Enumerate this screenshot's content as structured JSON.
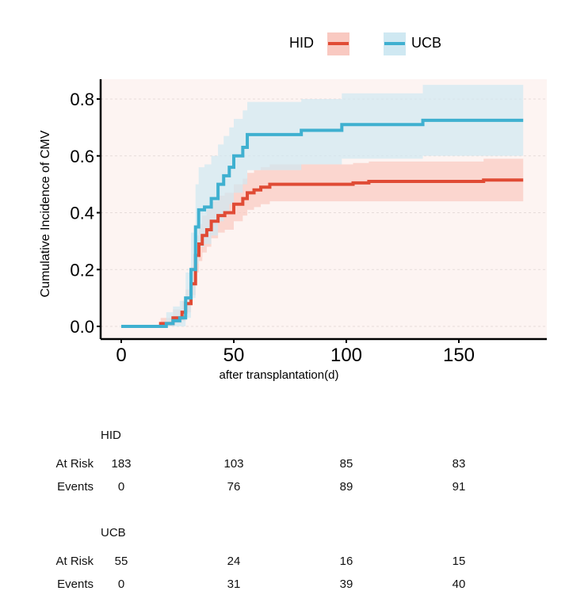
{
  "chart_data": {
    "type": "line",
    "step": true,
    "title": "",
    "xlabel": "after transplantation(d)",
    "ylabel": "Cumulative Incidence of CMV",
    "xlim": [
      -5,
      188
    ],
    "ylim": [
      -0.04,
      0.88
    ],
    "xticks": [
      0,
      50,
      100,
      150
    ],
    "yticks": [
      0.0,
      0.2,
      0.4,
      0.6,
      0.8
    ],
    "ytick_labels": [
      "0.0",
      "0.2",
      "0.4",
      "0.6",
      "0.8"
    ],
    "grid": "horizontal dashed",
    "legend_position": "top",
    "panel_color": "#fdf4f2",
    "series": [
      {
        "name": "HID",
        "color": "#e04b35",
        "band_color": "#f9c9c1",
        "x": [
          0,
          17.5,
          23,
          27,
          28.6,
          31,
          33,
          34.5,
          36,
          38,
          40,
          43,
          46,
          50,
          54,
          56,
          59,
          62,
          66,
          70,
          103,
          110,
          161,
          178.6
        ],
        "y": [
          0,
          0.01,
          0.03,
          0.05,
          0.08,
          0.15,
          0.25,
          0.29,
          0.32,
          0.34,
          0.37,
          0.39,
          0.4,
          0.43,
          0.45,
          0.47,
          0.48,
          0.49,
          0.5,
          0.5,
          0.505,
          0.51,
          0.515,
          0.515
        ],
        "lower": [
          0,
          0,
          0.01,
          0.02,
          0.05,
          0.11,
          0.19,
          0.23,
          0.26,
          0.28,
          0.31,
          0.33,
          0.34,
          0.37,
          0.39,
          0.41,
          0.42,
          0.43,
          0.44,
          0.44,
          0.44,
          0.44,
          0.44,
          0.44
        ],
        "upper": [
          0,
          0.03,
          0.06,
          0.09,
          0.13,
          0.21,
          0.32,
          0.36,
          0.39,
          0.41,
          0.44,
          0.46,
          0.47,
          0.5,
          0.52,
          0.54,
          0.55,
          0.56,
          0.57,
          0.57,
          0.575,
          0.58,
          0.59,
          0.59
        ]
      },
      {
        "name": "UCB",
        "color": "#3fb0d0",
        "band_color": "#cfe8f2",
        "x": [
          0,
          20,
          23,
          26,
          28.6,
          31,
          33,
          34.4,
          37,
          40,
          43,
          45.5,
          48,
          50,
          54,
          56,
          80,
          98,
          134,
          178.6
        ],
        "y": [
          0,
          0.01,
          0.02,
          0.03,
          0.1,
          0.2,
          0.35,
          0.41,
          0.42,
          0.45,
          0.5,
          0.53,
          0.56,
          0.6,
          0.63,
          0.675,
          0.69,
          0.71,
          0.725,
          0.725
        ],
        "lower": [
          0,
          0,
          0,
          0,
          0.03,
          0.1,
          0.22,
          0.28,
          0.29,
          0.32,
          0.37,
          0.4,
          0.43,
          0.47,
          0.5,
          0.55,
          0.57,
          0.59,
          0.6,
          0.6
        ],
        "upper": [
          0,
          0.05,
          0.07,
          0.09,
          0.19,
          0.33,
          0.5,
          0.56,
          0.57,
          0.6,
          0.64,
          0.67,
          0.7,
          0.73,
          0.76,
          0.79,
          0.8,
          0.82,
          0.85,
          0.85
        ]
      }
    ]
  },
  "risk_table": {
    "groups": [
      {
        "name": "HID",
        "rows": [
          {
            "label": "At Risk",
            "values": [
              "183",
              "103",
              "85",
              "83"
            ]
          },
          {
            "label": "Events",
            "values": [
              "0",
              "76",
              "89",
              "91"
            ]
          }
        ]
      },
      {
        "name": "UCB",
        "rows": [
          {
            "label": "At Risk",
            "values": [
              "55",
              "24",
              "16",
              "15"
            ]
          },
          {
            "label": "Events",
            "values": [
              "0",
              "31",
              "39",
              "40"
            ]
          }
        ]
      }
    ]
  }
}
